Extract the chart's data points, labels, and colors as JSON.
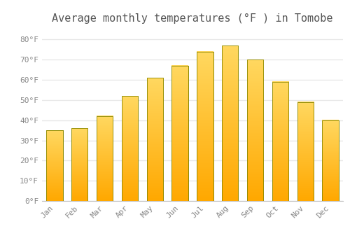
{
  "title": "Average monthly temperatures (°F ) in Tomobe",
  "months": [
    "Jan",
    "Feb",
    "Mar",
    "Apr",
    "May",
    "Jun",
    "Jul",
    "Aug",
    "Sep",
    "Oct",
    "Nov",
    "Dec"
  ],
  "values": [
    35,
    36,
    42,
    52,
    61,
    67,
    74,
    77,
    70,
    59,
    49,
    40
  ],
  "bar_color_light": "#FFD060",
  "bar_color_dark": "#FFA500",
  "bar_edge_color": "#888800",
  "background_color": "#FFFFFF",
  "plot_bg_color": "#FFFFFF",
  "grid_color": "#E8E8E8",
  "yticks": [
    0,
    10,
    20,
    30,
    40,
    50,
    60,
    70,
    80
  ],
  "ylim": [
    0,
    85
  ],
  "title_fontsize": 11,
  "tick_fontsize": 8,
  "tick_color": "#888888",
  "title_color": "#555555",
  "font_family": "monospace",
  "bar_width": 0.65
}
